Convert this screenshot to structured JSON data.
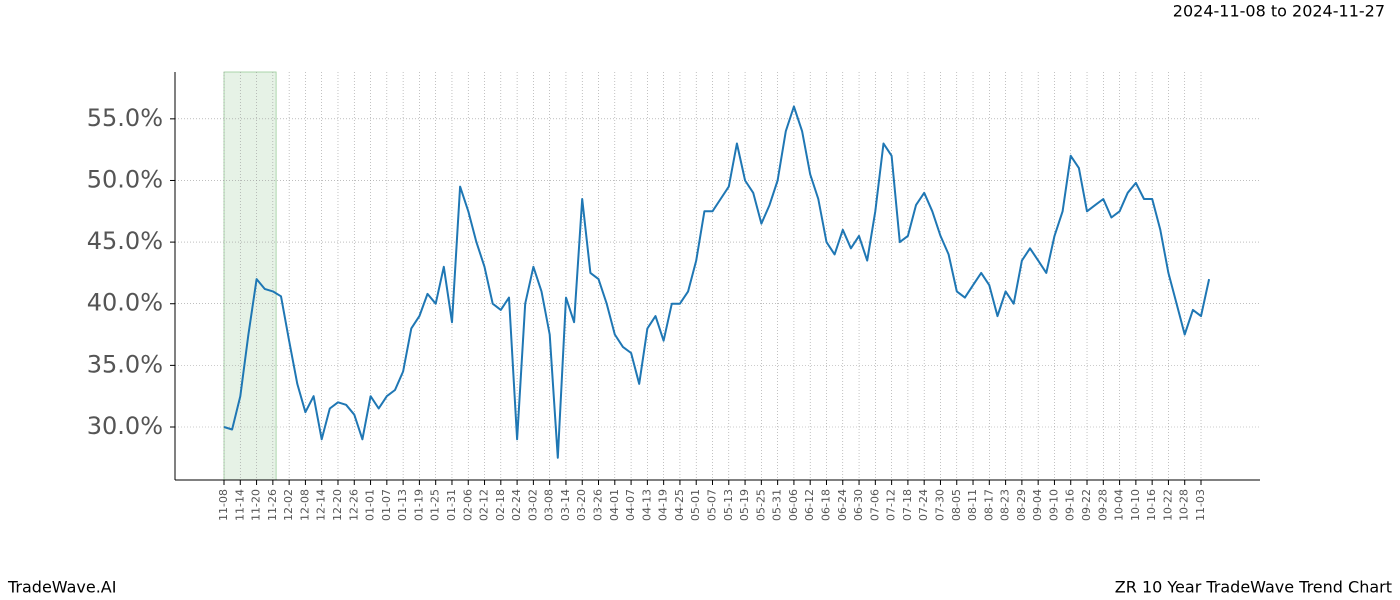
{
  "chart_data": {
    "type": "line",
    "date_range": "2024-11-08 to 2024-11-27",
    "watermark": "TradeWave.AI",
    "title": "ZR 10 Year TradeWave Trend Chart",
    "categories": [
      "11-08",
      null,
      "11-14",
      null,
      "11-20",
      null,
      "11-26",
      null,
      "12-02",
      null,
      "12-08",
      null,
      "12-14",
      null,
      "12-20",
      null,
      "12-26",
      null,
      "01-01",
      null,
      "01-07",
      null,
      "01-13",
      null,
      "01-19",
      null,
      "01-25",
      null,
      "01-31",
      null,
      "02-06",
      null,
      "02-12",
      null,
      "02-18",
      null,
      "02-24",
      null,
      "03-02",
      null,
      "03-08",
      null,
      "03-14",
      null,
      "03-20",
      null,
      "03-26",
      null,
      "04-01",
      null,
      "04-07",
      null,
      "04-13",
      null,
      "04-19",
      null,
      "04-25",
      null,
      "05-01",
      null,
      "05-07",
      null,
      "05-13",
      null,
      "05-19",
      null,
      "05-25",
      null,
      "05-31",
      null,
      "06-06",
      null,
      "06-12",
      null,
      "06-18",
      null,
      "06-24",
      null,
      "06-30",
      null,
      "07-06",
      null,
      "07-12",
      null,
      "07-18",
      null,
      "07-24",
      null,
      "07-30",
      null,
      "08-05",
      null,
      "08-11",
      null,
      "08-17",
      null,
      "08-23",
      null,
      "08-29",
      null,
      "09-04",
      null,
      "09-10",
      null,
      "09-16",
      null,
      "09-22",
      null,
      "09-28",
      null,
      "10-04",
      null,
      "10-10",
      null,
      "10-16",
      null,
      "10-22",
      null,
      "10-28",
      null,
      "11-03",
      null
    ],
    "values": [
      30.0,
      29.8,
      32.5,
      37.5,
      42.0,
      41.2,
      41.0,
      40.6,
      37.0,
      33.5,
      31.2,
      32.5,
      29.0,
      31.5,
      32.0,
      31.8,
      31.0,
      29.0,
      32.5,
      31.5,
      32.5,
      33.0,
      34.5,
      38.0,
      39.0,
      40.8,
      40.0,
      43.0,
      38.5,
      49.5,
      47.5,
      45.0,
      43.0,
      40.0,
      39.5,
      40.5,
      29.0,
      40.0,
      43.0,
      41.0,
      37.5,
      27.5,
      40.5,
      38.5,
      48.5,
      42.5,
      42.0,
      40.0,
      37.5,
      36.5,
      36.0,
      33.5,
      38.0,
      39.0,
      37.0,
      40.0,
      40.0,
      41.0,
      43.5,
      47.5,
      47.5,
      48.5,
      49.5,
      53.0,
      50.0,
      49.0,
      46.5,
      48.0,
      50.0,
      54.0,
      56.0,
      54.0,
      50.5,
      48.5,
      45.0,
      44.0,
      46.0,
      44.5,
      45.5,
      43.5,
      47.5,
      53.0,
      52.0,
      45.0,
      45.5,
      48.0,
      49.0,
      47.5,
      45.5,
      44.0,
      41.0,
      40.5,
      41.5,
      42.5,
      41.5,
      39.0,
      41.0,
      40.0,
      43.5,
      44.5,
      43.5,
      42.5,
      45.5,
      47.5,
      52.0,
      51.0,
      47.5,
      48.0,
      48.5,
      47.0,
      47.5,
      49.0,
      49.8,
      48.5,
      48.5,
      46.0,
      42.5,
      40.0,
      37.5,
      39.5,
      39.0,
      42.0
    ],
    "color": "#1f77b4",
    "highlight_color": "#e6f2e6",
    "ylim": [
      25.7,
      58.8
    ],
    "yticks": [
      {
        "value": 30,
        "label": "30.0%"
      },
      {
        "value": 35,
        "label": "35.0%"
      },
      {
        "value": 40,
        "label": "40.0%"
      },
      {
        "value": 45,
        "label": "45.0%"
      },
      {
        "value": 50,
        "label": "50.0%"
      },
      {
        "value": 55,
        "label": "55.0%"
      }
    ],
    "grid": true
  }
}
